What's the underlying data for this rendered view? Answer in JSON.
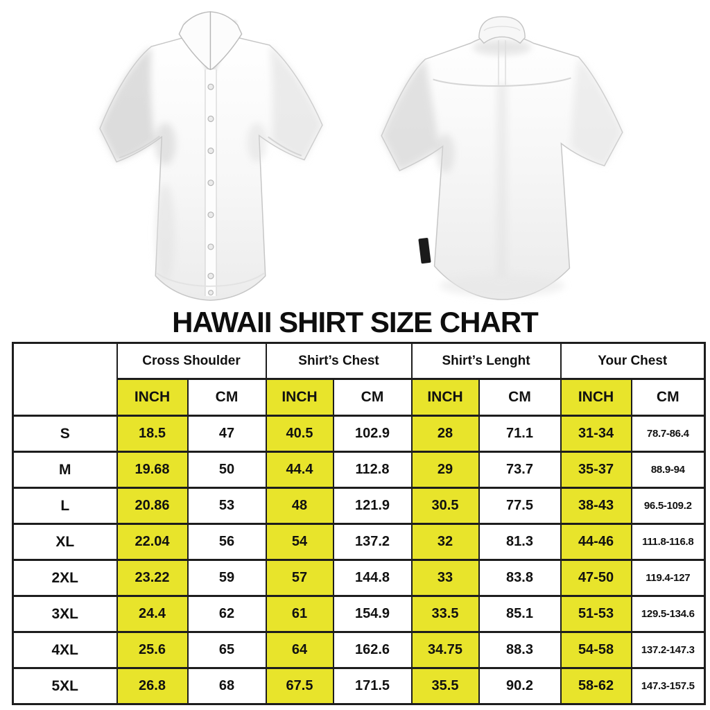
{
  "title": "HAWAII SHIRT SIZE CHART",
  "colors": {
    "highlight_yellow": "#e8e42b",
    "border_black": "#1d1d1d",
    "text_black": "#111111",
    "background": "#ffffff"
  },
  "images": {
    "front_shirt_label": "white short-sleeve button-up shirt, front view",
    "back_shirt_label": "white short-sleeve shirt, back view with small black side tag"
  },
  "size_chart": {
    "groups": [
      {
        "label": "Cross Shoulder"
      },
      {
        "label": "Shirt’s Chest"
      },
      {
        "label": "Shirt’s Lenght"
      },
      {
        "label": "Your Chest"
      }
    ],
    "unit_headers": [
      "INCH",
      "CM"
    ],
    "columns": [
      "cell-cross-shoulder-inch",
      "cell-cross-shoulder-cm",
      "cell-shirts-chest-inch",
      "cell-shirts-chest-cm",
      "cell-shirts-length-inch",
      "cell-shirts-length-cm",
      "cell-your-chest-inch",
      "cell-your-chest-cm"
    ],
    "rows": [
      {
        "size": "S",
        "values": [
          "18.5",
          "47",
          "40.5",
          "102.9",
          "28",
          "71.1",
          "31-34",
          "78.7-86.4"
        ]
      },
      {
        "size": "M",
        "values": [
          "19.68",
          "50",
          "44.4",
          "112.8",
          "29",
          "73.7",
          "35-37",
          "88.9-94"
        ]
      },
      {
        "size": "L",
        "values": [
          "20.86",
          "53",
          "48",
          "121.9",
          "30.5",
          "77.5",
          "38-43",
          "96.5-109.2"
        ]
      },
      {
        "size": "XL",
        "values": [
          "22.04",
          "56",
          "54",
          "137.2",
          "32",
          "81.3",
          "44-46",
          "111.8-116.8"
        ]
      },
      {
        "size": "2XL",
        "values": [
          "23.22",
          "59",
          "57",
          "144.8",
          "33",
          "83.8",
          "47-50",
          "119.4-127"
        ]
      },
      {
        "size": "3XL",
        "values": [
          "24.4",
          "62",
          "61",
          "154.9",
          "33.5",
          "85.1",
          "51-53",
          "129.5-134.6"
        ]
      },
      {
        "size": "4XL",
        "values": [
          "25.6",
          "65",
          "64",
          "162.6",
          "34.75",
          "88.3",
          "54-58",
          "137.2-147.3"
        ]
      },
      {
        "size": "5XL",
        "values": [
          "26.8",
          "68",
          "67.5",
          "171.5",
          "35.5",
          "90.2",
          "58-62",
          "147.3-157.5"
        ]
      }
    ]
  }
}
